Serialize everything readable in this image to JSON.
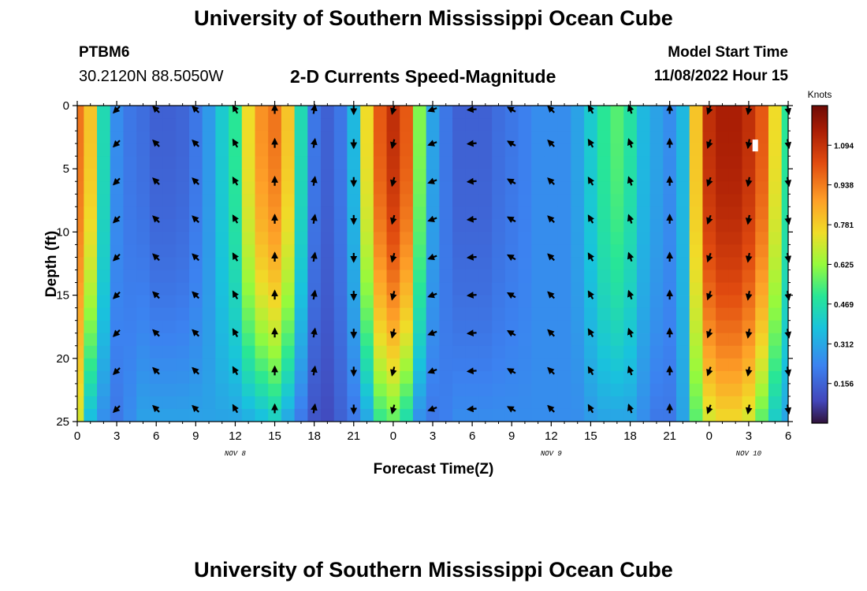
{
  "page": {
    "title_top": "University of Southern Mississippi Ocean Cube",
    "title_bottom": "University of Southern Mississippi Ocean Cube",
    "station": "PTBM6",
    "coordinates": "30.2120N  88.5050W",
    "subtitle": "2-D Currents Speed-Magnitude",
    "model_start_label": "Model Start Time",
    "model_start_value": "11/08/2022 Hour 15"
  },
  "chart_data": {
    "type": "heatmap",
    "title": "2-D Currents Speed-Magnitude",
    "xlabel": "Forecast Time(Z)",
    "ylabel": "Depth (ft)",
    "x_unit": "hours since 11/08 00Z",
    "xlim": [
      0,
      54
    ],
    "ylim": [
      0,
      25
    ],
    "x_ticks": [
      0,
      3,
      6,
      9,
      12,
      15,
      18,
      21,
      24,
      27,
      30,
      33,
      36,
      39,
      42,
      45,
      48,
      51,
      54
    ],
    "x_tick_labels": [
      "0",
      "3",
      "6",
      "9",
      "12",
      "15",
      "18",
      "21",
      "0",
      "3",
      "6",
      "9",
      "12",
      "15",
      "18",
      "21",
      "0",
      "3",
      "6"
    ],
    "y_ticks": [
      0,
      5,
      10,
      15,
      20,
      25
    ],
    "y_tick_labels": [
      "0",
      "5",
      "10",
      "15",
      "20",
      "25"
    ],
    "date_labels": [
      {
        "text": "NOV 8",
        "x": 12
      },
      {
        "text": "NOV 9",
        "x": 36
      },
      {
        "text": "NOV 10",
        "x": 51
      }
    ],
    "colorbar": {
      "label": "Knots",
      "range": [
        0.0,
        1.25
      ],
      "ticks": [
        0.156,
        0.312,
        0.469,
        0.625,
        0.781,
        0.938,
        1.094
      ],
      "tick_labels": [
        "0.156",
        "0.312",
        "0.469",
        "0.625",
        "0.781",
        "0.938",
        "1.094"
      ]
    },
    "speed_profile": {
      "hours": [
        0,
        1,
        2,
        3,
        4,
        5,
        6,
        7,
        8,
        9,
        10,
        11,
        12,
        13,
        14,
        15,
        16,
        17,
        18,
        19,
        20,
        21,
        22,
        23,
        24,
        25,
        26,
        27,
        28,
        29,
        30,
        31,
        32,
        33,
        34,
        35,
        36,
        37,
        38,
        39,
        40,
        41,
        42,
        43,
        44,
        45,
        46,
        47,
        48,
        49,
        50,
        51,
        52,
        53,
        54
      ],
      "surface_knots": [
        0.95,
        0.8,
        0.45,
        0.25,
        0.2,
        0.18,
        0.15,
        0.15,
        0.16,
        0.2,
        0.28,
        0.4,
        0.5,
        0.75,
        0.9,
        0.95,
        0.8,
        0.45,
        0.2,
        0.15,
        0.2,
        0.35,
        0.75,
        1.0,
        1.1,
        1.0,
        0.6,
        0.3,
        0.2,
        0.15,
        0.15,
        0.15,
        0.18,
        0.2,
        0.22,
        0.25,
        0.25,
        0.25,
        0.3,
        0.4,
        0.5,
        0.55,
        0.48,
        0.35,
        0.3,
        0.25,
        0.35,
        0.8,
        1.1,
        1.15,
        1.15,
        1.1,
        1.0,
        0.75,
        0.5
      ],
      "bottom_knots": [
        0.7,
        0.35,
        0.25,
        0.2,
        0.25,
        0.3,
        0.3,
        0.3,
        0.3,
        0.3,
        0.3,
        0.3,
        0.3,
        0.32,
        0.35,
        0.4,
        0.3,
        0.2,
        0.12,
        0.1,
        0.15,
        0.2,
        0.3,
        0.5,
        0.55,
        0.45,
        0.25,
        0.2,
        0.22,
        0.25,
        0.25,
        0.25,
        0.25,
        0.25,
        0.25,
        0.25,
        0.25,
        0.25,
        0.25,
        0.28,
        0.3,
        0.3,
        0.3,
        0.25,
        0.2,
        0.2,
        0.3,
        0.55,
        0.7,
        0.75,
        0.75,
        0.7,
        0.55,
        0.4,
        0.3
      ]
    },
    "vector_columns": {
      "hours": [
        3,
        6,
        9,
        12,
        15,
        18,
        21,
        24,
        27,
        30,
        33,
        36,
        39,
        42,
        45,
        48,
        51,
        54
      ],
      "direction_deg": [
        225,
        315,
        315,
        330,
        0,
        10,
        180,
        195,
        250,
        265,
        300,
        315,
        330,
        340,
        0,
        200,
        190,
        170
      ]
    },
    "vector_depths_ft": [
      0,
      3,
      6,
      9,
      12,
      15,
      18,
      21,
      24
    ],
    "missing_cell": {
      "hours": 51.5,
      "depth_ft": 3
    }
  }
}
